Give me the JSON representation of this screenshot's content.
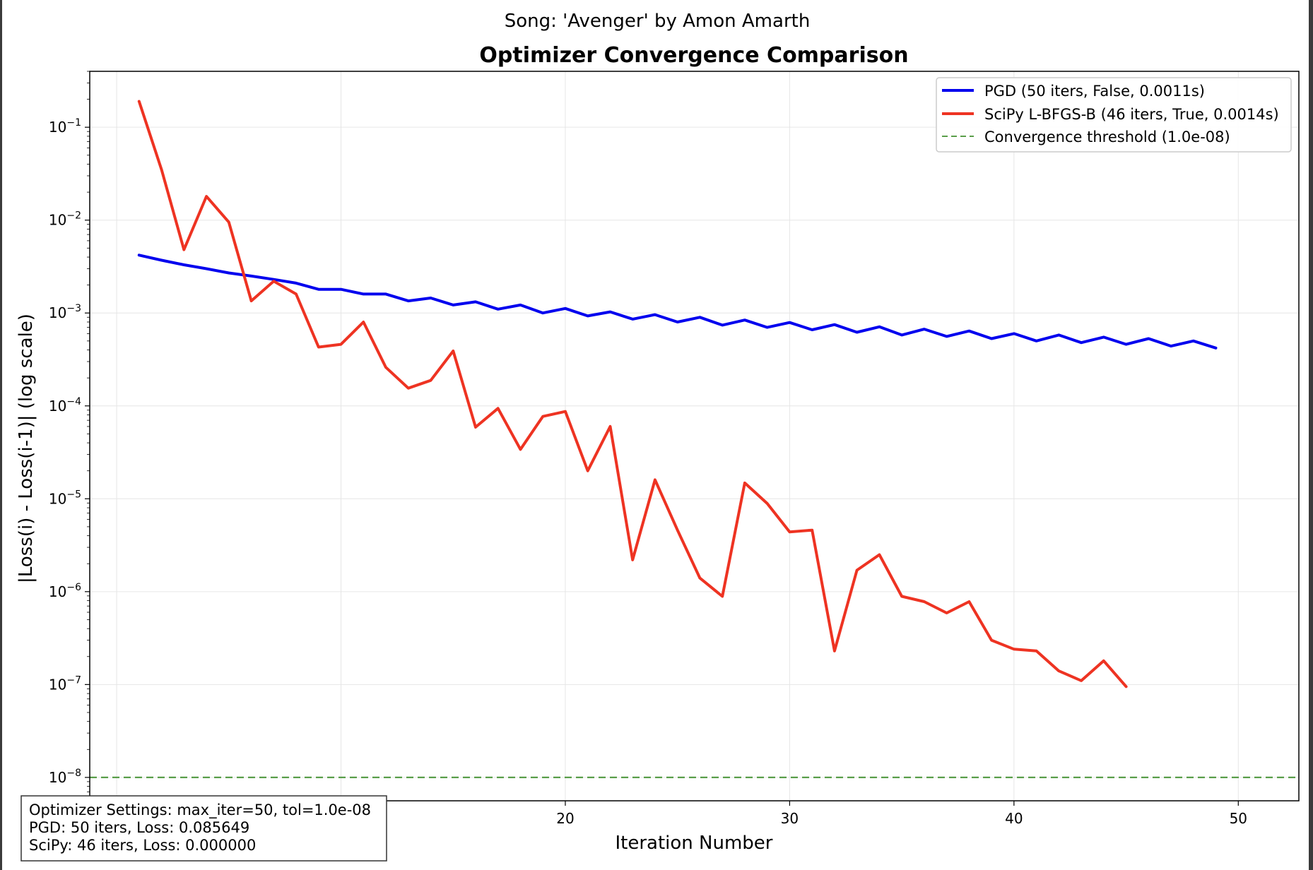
{
  "chart_data": {
    "type": "line",
    "suptitle": "Song: 'Avenger' by Amon Amarth",
    "title": "Optimizer Convergence Comparison",
    "xlabel": "Iteration Number",
    "ylabel": "|Loss(i) - Loss(i-1)| (log scale)",
    "xlim": [
      -1.2,
      52.7
    ],
    "ylim": [
      5.6e-09,
      0.4
    ],
    "yscale": "log",
    "grid": true,
    "legend_position": "top-right",
    "x_ticks": [
      10,
      20,
      30,
      40,
      50
    ],
    "x_tick_labels": [
      "10",
      "20",
      "30",
      "40",
      "50"
    ],
    "y_ticks": [
      1e-08,
      1e-07,
      1e-06,
      1e-05,
      0.0001,
      0.001,
      0.01,
      0.1
    ],
    "y_tick_labels": [
      {
        "base": "10",
        "exp": "−8"
      },
      {
        "base": "10",
        "exp": "−7"
      },
      {
        "base": "10",
        "exp": "−6"
      },
      {
        "base": "10",
        "exp": "−5"
      },
      {
        "base": "10",
        "exp": "−4"
      },
      {
        "base": "10",
        "exp": "−3"
      },
      {
        "base": "10",
        "exp": "−2"
      },
      {
        "base": "10",
        "exp": "−1"
      }
    ],
    "series": [
      {
        "name": "PGD (50 iters, False, 0.0011s)",
        "color": "#0000ee",
        "x": [
          1,
          2,
          3,
          4,
          5,
          6,
          7,
          8,
          9,
          10,
          11,
          12,
          13,
          14,
          15,
          16,
          17,
          18,
          19,
          20,
          21,
          22,
          23,
          24,
          25,
          26,
          27,
          28,
          29,
          30,
          31,
          32,
          33,
          34,
          35,
          36,
          37,
          38,
          39,
          40,
          41,
          42,
          43,
          44,
          45,
          46,
          47,
          48,
          49
        ],
        "y": [
          0.0042,
          0.0037,
          0.0033,
          0.003,
          0.0027,
          0.0025,
          0.0023,
          0.0021,
          0.0018,
          0.0018,
          0.0016,
          0.0016,
          0.00135,
          0.00145,
          0.00122,
          0.00132,
          0.0011,
          0.00122,
          0.001,
          0.00112,
          0.00093,
          0.00103,
          0.00086,
          0.00096,
          0.0008,
          0.0009,
          0.00074,
          0.00084,
          0.0007,
          0.00079,
          0.00066,
          0.00075,
          0.00062,
          0.00071,
          0.00058,
          0.00067,
          0.00056,
          0.00064,
          0.00053,
          0.0006,
          0.0005,
          0.00058,
          0.00048,
          0.00055,
          0.00046,
          0.00053,
          0.00044,
          0.0005,
          0.00042
        ]
      },
      {
        "name": "SciPy L-BFGS-B (46 iters, True, 0.0014s)",
        "color": "#ee3322",
        "x": [
          1,
          2,
          3,
          4,
          5,
          6,
          7,
          8,
          9,
          10,
          11,
          12,
          13,
          14,
          15,
          16,
          17,
          18,
          19,
          20,
          21,
          22,
          23,
          24,
          25,
          26,
          27,
          28,
          29,
          30,
          31,
          32,
          33,
          34,
          35,
          36,
          37,
          38,
          39,
          40,
          41,
          42,
          43,
          44,
          45
        ],
        "y": [
          0.19,
          0.035,
          0.0048,
          0.018,
          0.0095,
          0.00135,
          0.0022,
          0.0016,
          0.00043,
          0.00046,
          0.0008,
          0.00026,
          0.000155,
          0.000188,
          0.00039,
          5.9e-05,
          9.4e-05,
          3.4e-05,
          7.7e-05,
          8.7e-05,
          2e-05,
          6e-05,
          2.2e-06,
          1.6e-05,
          4.6e-06,
          1.4e-06,
          8.9e-07,
          1.48e-05,
          8.9e-06,
          4.4e-06,
          4.6e-06,
          2.3e-07,
          1.7e-06,
          2.5e-06,
          8.9e-07,
          7.8e-07,
          5.9e-07,
          7.8e-07,
          3e-07,
          2.4e-07,
          2.3e-07,
          1.4e-07,
          1.1e-07,
          1.8e-07,
          9.5e-08
        ]
      }
    ],
    "threshold": {
      "name": "Convergence threshold (1.0e-08)",
      "value": 1e-08,
      "color": "#5a9e4a",
      "style": "dashed"
    },
    "info_box": [
      "Optimizer Settings: max_iter=50, tol=1.0e-08",
      "PGD: 50 iters, Loss: 0.085649",
      "SciPy: 46 iters, Loss: 0.000000"
    ]
  }
}
